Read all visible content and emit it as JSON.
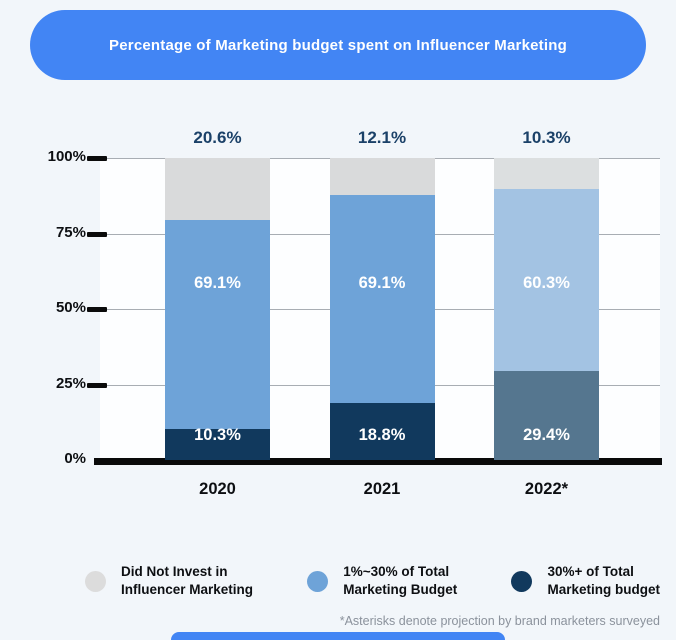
{
  "title": "Percentage of Marketing budget spent on Influencer Marketing",
  "colors": {
    "accent_blue": "#4285f4",
    "navy": "#11395d",
    "mid_blue": "#6ea3d8",
    "light_blue_projection": "#a3c3e3",
    "slate_projection": "#55768f",
    "gray_segment": "#d9dadb",
    "top_label_navy": "#1b4168",
    "axis_black": "#0a0a0a",
    "footnote_gray": "#8b929c"
  },
  "chart_data": {
    "type": "bar",
    "subtype": "stacked-percentage",
    "title": "Percentage of Marketing budget spent on Influencer Marketing",
    "categories": [
      "2020",
      "2021",
      "2022*"
    ],
    "series": [
      {
        "name": "30%+ of Total Marketing budget",
        "values": [
          10.3,
          18.8,
          29.4
        ],
        "colors": [
          "#11395d",
          "#11395d",
          "#55768f"
        ],
        "label_style": "inside-white"
      },
      {
        "name": "1%~30% of Total Marketing Budget",
        "values": [
          69.1,
          69.1,
          60.3
        ],
        "colors": [
          "#6ea3d8",
          "#6ea3d8",
          "#a3c3e3"
        ],
        "label_style": "inside-white"
      },
      {
        "name": "Did Not Invest in Influencer Marketing",
        "values": [
          20.6,
          12.1,
          10.3
        ],
        "colors": [
          "#d9dadb",
          "#d9dadb",
          "#dcdfe0"
        ],
        "label_style": "above-navy"
      }
    ],
    "y_ticks": [
      "0%",
      "25%",
      "50%",
      "75%",
      "100%"
    ],
    "ylim": [
      0,
      100
    ],
    "grid": true,
    "legend_position": "bottom"
  },
  "legend": {
    "items": [
      {
        "line1": "Did Not Invest in",
        "line2": "Influencer Marketing",
        "color": "#dcdcdc"
      },
      {
        "line1": "1%~30% of Total",
        "line2": "Marketing Budget",
        "color": "#6ea3d8"
      },
      {
        "line1": "30%+ of Total",
        "line2": "Marketing budget",
        "color": "#11395d"
      }
    ]
  },
  "footnote": "*Asterisks denote projection by brand marketers surveyed"
}
